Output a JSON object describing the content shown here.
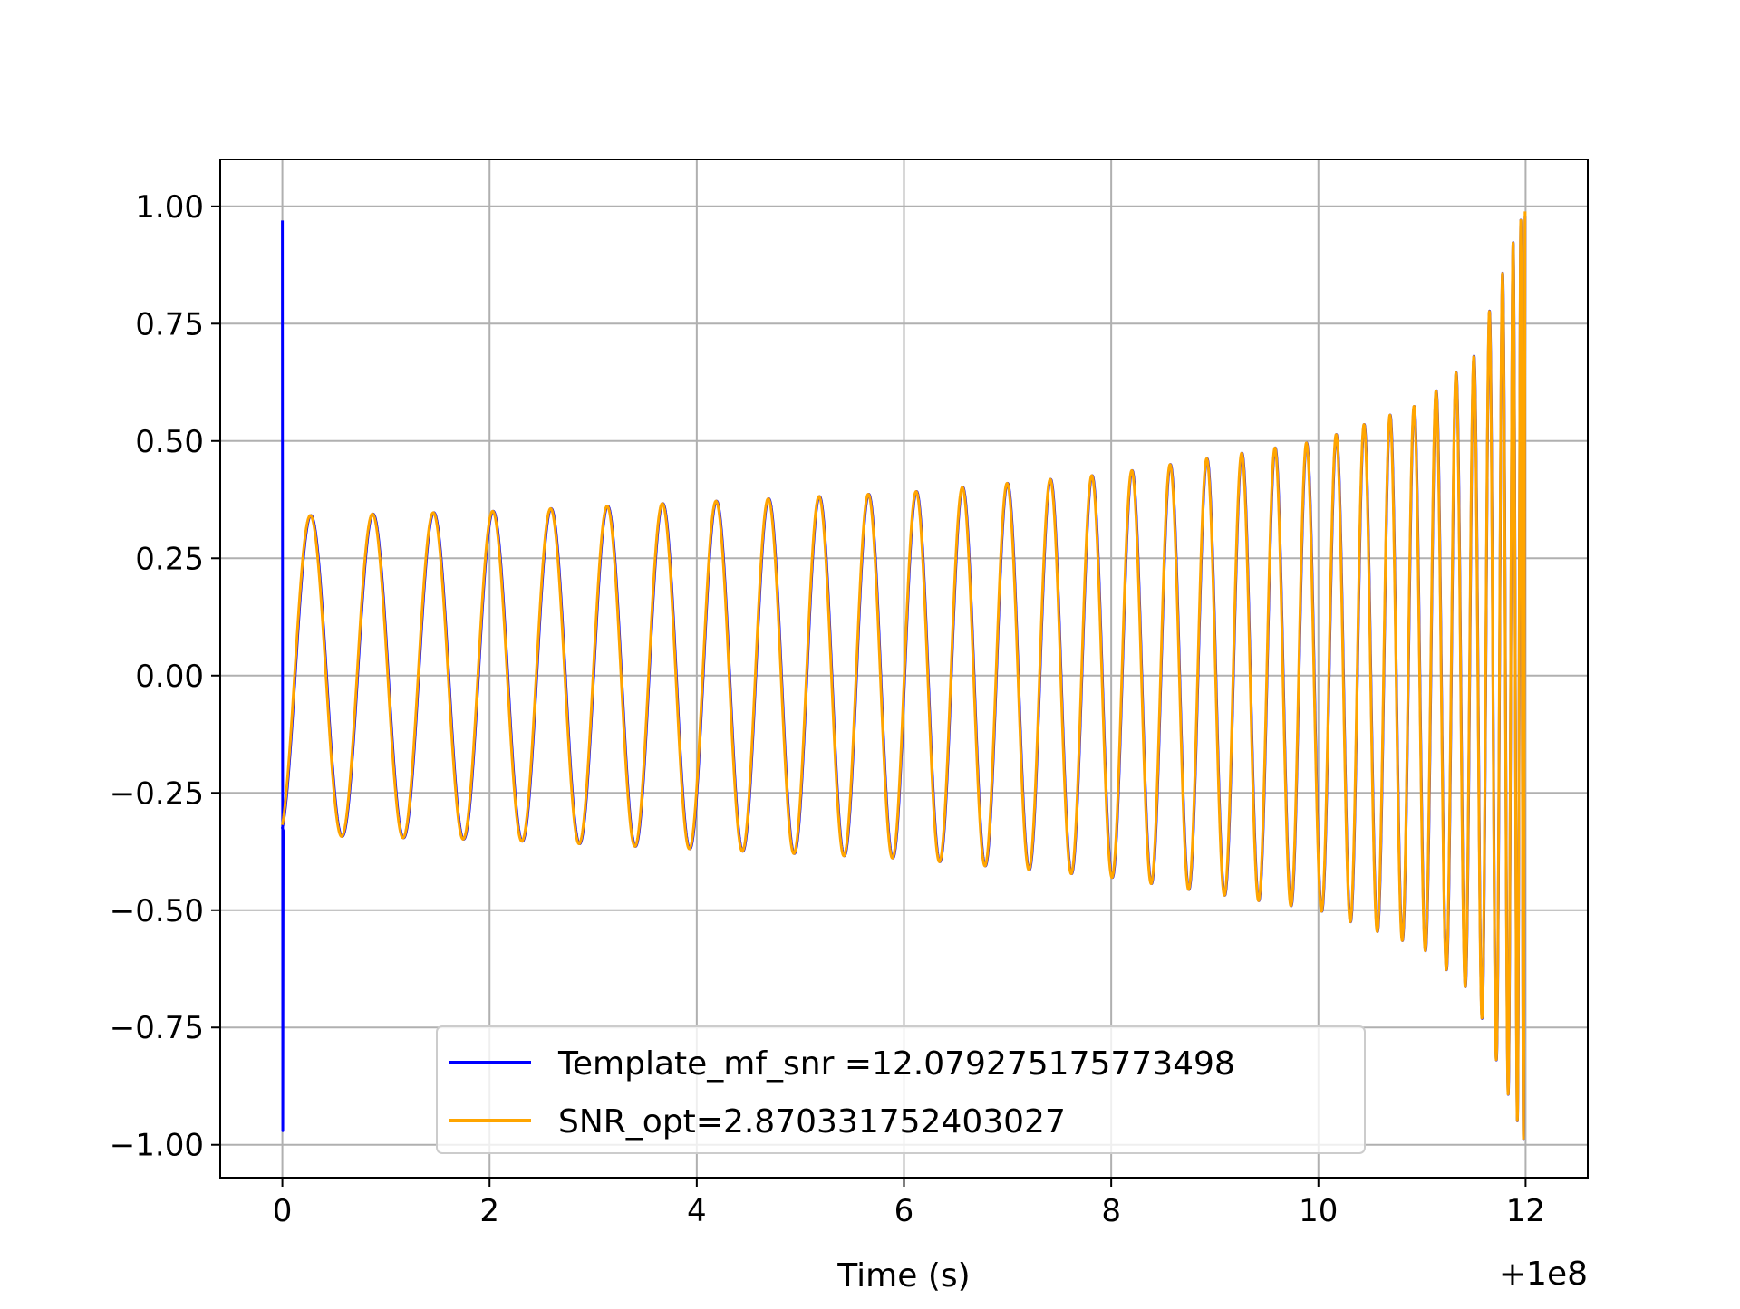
{
  "chart_data": {
    "type": "line",
    "title": "",
    "xlabel": "Time (s)",
    "ylabel": "",
    "x_offset_label": "+1e8",
    "xlim": [
      -0.6,
      12.6
    ],
    "ylim": [
      -1.07,
      1.1
    ],
    "x_ticks": [
      0,
      2,
      4,
      6,
      8,
      10,
      12
    ],
    "x_tick_labels": [
      "0",
      "2",
      "4",
      "6",
      "8",
      "10",
      "12"
    ],
    "y_ticks": [
      1.0,
      0.75,
      0.5,
      0.25,
      0.0,
      -0.25,
      -0.5,
      -0.75,
      -1.0
    ],
    "y_tick_labels": [
      "1.00",
      "0.75",
      "0.50",
      "0.25",
      "0.00",
      "−0.25",
      "−0.50",
      "−0.75",
      "−1.00"
    ],
    "grid": true,
    "legend_position": "lower-center",
    "series": [
      {
        "name": "Template_mf_snr =12.079275175773498",
        "color": "#0000ff",
        "description": "chirp waveform; amplitude ~0.34 at t=0 rising to ~1.0 at t=12, with an initial spike to +/-0.97 at t=0",
        "start_spike": [
          0.97,
          -0.97
        ],
        "envelope": {
          "t": [
            0,
            2,
            4,
            6,
            8,
            10,
            11,
            11.5,
            12
          ],
          "amp": [
            0.34,
            0.35,
            0.37,
            0.39,
            0.43,
            0.5,
            0.58,
            0.68,
            1.0
          ]
        }
      },
      {
        "name": "SNR_opt=2.870331752403027",
        "color": "#ffa500",
        "description": "chirp waveform nearly identical to template, amplitude ~0.34 rising to ~1.0 near t=12",
        "envelope": {
          "t": [
            0,
            2,
            4,
            6,
            8,
            10,
            11,
            11.5,
            12
          ],
          "amp": [
            0.34,
            0.35,
            0.37,
            0.39,
            0.43,
            0.5,
            0.58,
            0.68,
            1.0
          ]
        }
      }
    ]
  }
}
